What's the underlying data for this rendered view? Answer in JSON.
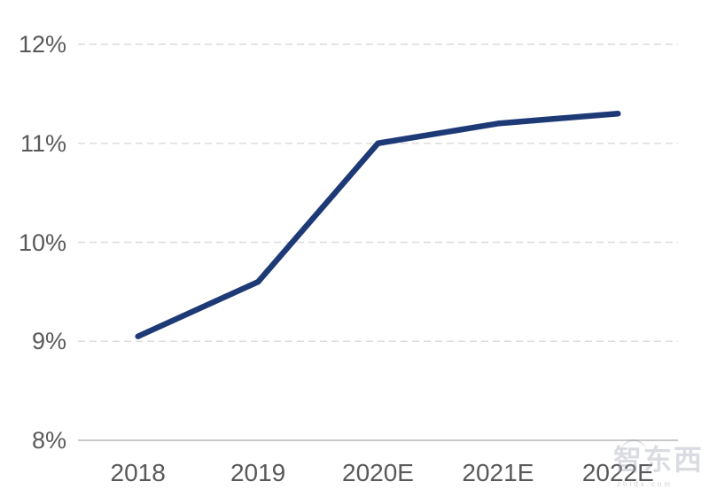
{
  "watermark": {
    "logo_text": "智东西",
    "domain_text": "zhidx.com"
  },
  "chart_data": {
    "type": "line",
    "title": "",
    "xlabel": "",
    "ylabel": "",
    "categories": [
      "2018",
      "2019",
      "2020E",
      "2021E",
      "2022E"
    ],
    "values": [
      9.05,
      9.6,
      11.0,
      11.2,
      11.3
    ],
    "ylim": [
      8,
      12
    ],
    "yticks": [
      8,
      9,
      10,
      11,
      12
    ],
    "ytick_labels": [
      "8%",
      "9%",
      "10%",
      "11%",
      "12%"
    ],
    "grid": "horizontal-dashed",
    "legend": "none",
    "line_color": "#1e3a76",
    "grid_color": "#dcdcdc",
    "axis_line_color": "#c9c9c9",
    "label_color": "#595959"
  }
}
